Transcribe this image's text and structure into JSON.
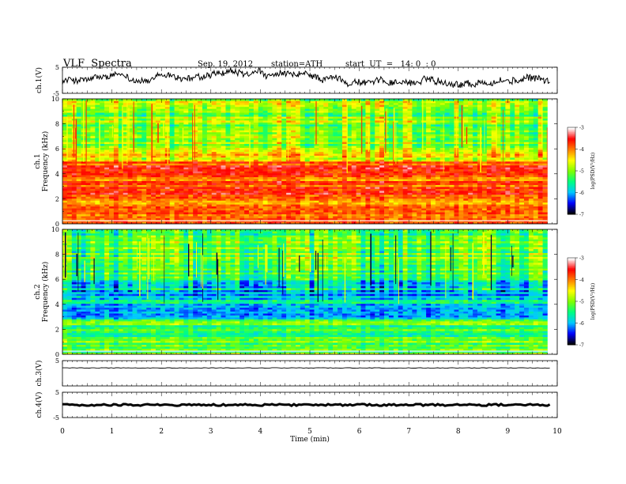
{
  "header": {
    "title": "VLF  Spectra",
    "date": "Sep. 19, 2012",
    "station": "station=ATH",
    "start": "start  UT  =   14: 0  : 0"
  },
  "chart_data": {
    "type": "heatmap",
    "title": "VLF  Spectra",
    "xlabel": "Time  (min)",
    "xlim": [
      0,
      10
    ],
    "xticks": [
      "0",
      "1",
      "2",
      "3",
      "4",
      "5",
      "6",
      "7",
      "8",
      "9",
      "10"
    ],
    "panels": [
      {
        "id": "ch1-wave",
        "ylabel": "ch.1(V)",
        "ylim": [
          -5,
          5
        ],
        "yticks": [
          "5",
          "-5"
        ],
        "kind": "waveform"
      },
      {
        "id": "ch1-spec",
        "ylabel": "ch.1",
        "ylabel2": "Frequency  (kHz)",
        "ylim": [
          0,
          10
        ],
        "yticks": [
          "0",
          "2",
          "4",
          "6",
          "8",
          "10"
        ],
        "kind": "spectrogram",
        "data_end_min": 9.8
      },
      {
        "id": "ch2-spec",
        "ylabel": "ch.2",
        "ylabel2": "Frequency  (kHz)",
        "ylim": [
          0,
          10
        ],
        "yticks": [
          "0",
          "2",
          "4",
          "6",
          "8",
          "10"
        ],
        "kind": "spectrogram",
        "data_end_min": 9.8
      },
      {
        "id": "ch3-wave",
        "ylabel": "ch.3(V)",
        "ylim": [
          -5,
          5
        ],
        "yticks": [
          "5"
        ],
        "kind": "flatline",
        "level": 2.1
      },
      {
        "id": "ch4-wave",
        "ylabel": "ch.4(V)",
        "ylim": [
          -5,
          5
        ],
        "yticks": [
          "5",
          "-5"
        ],
        "kind": "flatline",
        "level": 0.0
      }
    ],
    "colorbar": {
      "label": "log(PSD(V²/Hz)",
      "range": [
        -7,
        -3
      ],
      "ticks": [
        "-3",
        "-4",
        "-5",
        "-6",
        "-7"
      ],
      "colormap": [
        "#000000",
        "#0000ff",
        "#00c8ff",
        "#00ff80",
        "#80ff00",
        "#ffff00",
        "#ff8000",
        "#ff0000",
        "#ffffff"
      ]
    },
    "grid": false
  }
}
